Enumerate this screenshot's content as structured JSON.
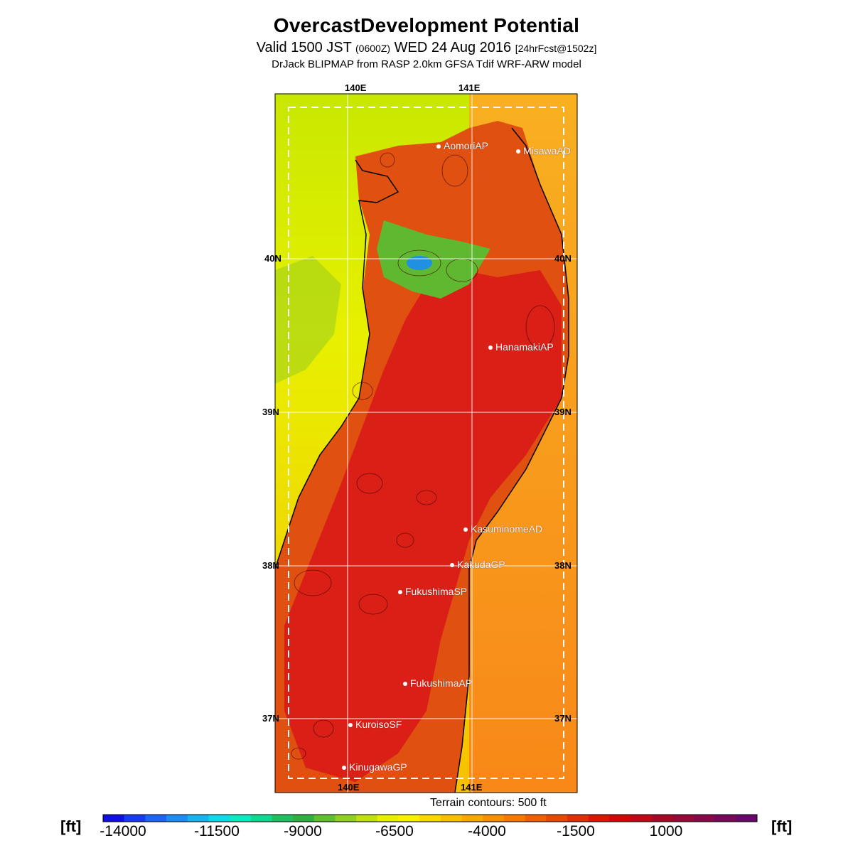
{
  "header": {
    "title": "OvercastDevelopment Potential",
    "subtitle_prefix": "Valid 1500 JST",
    "subtitle_utc": "(0600Z)",
    "subtitle_date": "WED 24 Aug 2016",
    "subtitle_fcst": "[24hrFcst@1502z]",
    "model_line": "DrJack BLIPMAP from RASP 2.0km GFSA Tdif WRF-ARW model"
  },
  "map": {
    "lon_labels_top": [
      "140E",
      "141E"
    ],
    "lon_labels_bottom": [
      "140E",
      "141E"
    ],
    "lat_labels_left": [
      "40N",
      "39N",
      "38N",
      "37N"
    ],
    "lat_labels_right": [
      "40N",
      "39N",
      "38N",
      "37N"
    ],
    "terrain_note": "Terrain contours: 500 ft",
    "stations": [
      {
        "name": "AomoriAP"
      },
      {
        "name": "MisawaAD"
      },
      {
        "name": "HanamakiAP"
      },
      {
        "name": "KasuminomeAD"
      },
      {
        "name": "KakudaGP"
      },
      {
        "name": "FukushimaSP"
      },
      {
        "name": "FukushimaAP"
      },
      {
        "name": "KuroisoSF"
      },
      {
        "name": "KinugawaGP"
      }
    ]
  },
  "colorbar": {
    "unit_left": "[ft]",
    "unit_right": "[ft]",
    "tick_labels": [
      "-14000",
      "-11500",
      "-9000",
      "-6500",
      "-4000",
      "-1500",
      "1000"
    ],
    "colors": [
      "#1010e0",
      "#1a3cf0",
      "#1e64f5",
      "#1e8cf5",
      "#18b4f0",
      "#10d8e8",
      "#10e8c0",
      "#10d890",
      "#20c060",
      "#30b040",
      "#60c030",
      "#90d020",
      "#c0e010",
      "#e8f000",
      "#f8f000",
      "#f8d800",
      "#f8c000",
      "#f8a800",
      "#f89000",
      "#f87800",
      "#f06000",
      "#e84800",
      "#e03000",
      "#d81800",
      "#d00808",
      "#c00818",
      "#a80828",
      "#980838",
      "#880848",
      "#780858",
      "#680868"
    ]
  },
  "legend_colors": {
    "land_high": "#d81818",
    "land_mid": "#e85a10",
    "sea_west": "#f8d000",
    "sea_east": "#f89820",
    "low_green": "#40b040"
  }
}
